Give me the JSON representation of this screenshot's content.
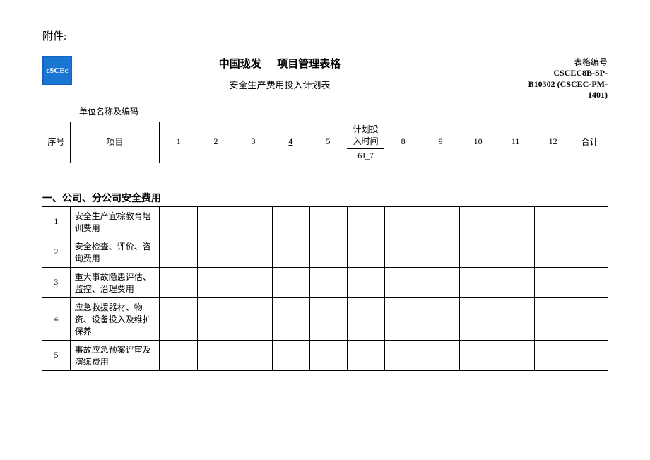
{
  "attachment_label": "附件:",
  "logo_text": "cSCEc",
  "main_title_left": "中国珑发",
  "main_title_right": "项目管理表格",
  "sub_title": "安全生产费用投入计划表",
  "form_code_label": "表格编号",
  "form_code_line1": "CSCEC8B-SP-",
  "form_code_line2": "B10302 (CSCEC-PM-",
  "form_code_line3": "1401)",
  "unit_label": "单位名称及编码",
  "col_seq": "序号",
  "col_project": "项目",
  "col_plan_time": "计划投入时间",
  "col_total": "合计",
  "months": {
    "m1": "1",
    "m2": "2",
    "m3": "3",
    "m4": "4",
    "m5": "5",
    "m67": "6J_7",
    "m8": "8",
    "m9": "9",
    "m10": "10",
    "m11": "11",
    "m12": "12"
  },
  "section1_title": "一、公司、分公司安全费用",
  "rows": [
    {
      "n": "1",
      "desc": "安全生产宜棕教育培训费用"
    },
    {
      "n": "2",
      "desc": "安全检查、评价、咨询费用"
    },
    {
      "n": "3",
      "desc": "重大事故隐患评估、监控、治理费用"
    },
    {
      "n": "4",
      "desc": "应急救援器材、物资、设备投入及维护保养"
    },
    {
      "n": "5",
      "desc": "事故应急预案评审及演练费用"
    }
  ],
  "colors": {
    "logo_bg": "#1976d2",
    "logo_border": "#1565c0",
    "text": "#000000",
    "bg": "#ffffff",
    "border": "#000000"
  }
}
